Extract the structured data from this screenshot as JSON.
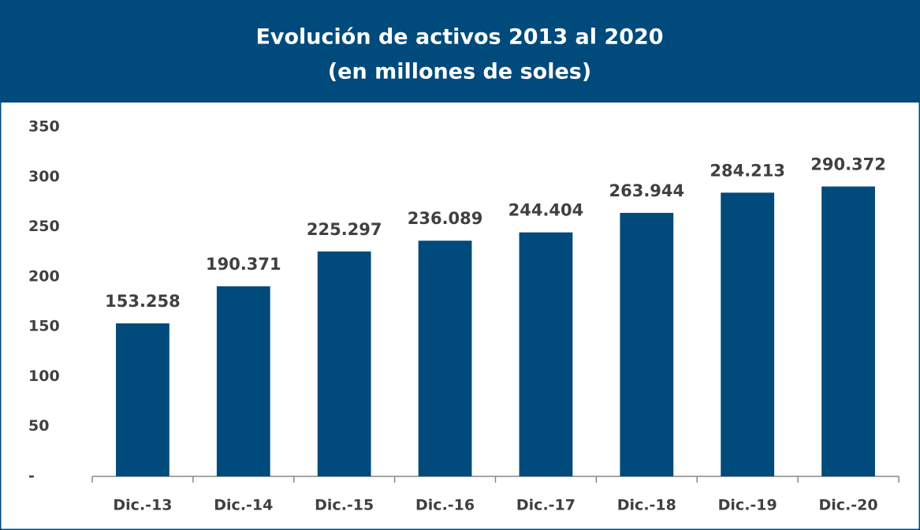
{
  "chart_data": {
    "type": "bar",
    "title": "Evolución de activos 2013 al 2020",
    "subtitle": "(en millones de soles)",
    "categories": [
      "Dic.-13",
      "Dic.-14",
      "Dic.-15",
      "Dic.-16",
      "Dic.-17",
      "Dic.-18",
      "Dic.-19",
      "Dic.-20"
    ],
    "values": [
      153.258,
      190.371,
      225.297,
      236.089,
      244.404,
      263.944,
      284.213,
      290.372
    ],
    "color": "#004a7c",
    "ylim": [
      0,
      350
    ],
    "yticks": [
      {
        "value": 0,
        "label": "-"
      },
      50,
      100,
      150,
      200,
      250,
      300,
      350
    ],
    "grid": false
  }
}
